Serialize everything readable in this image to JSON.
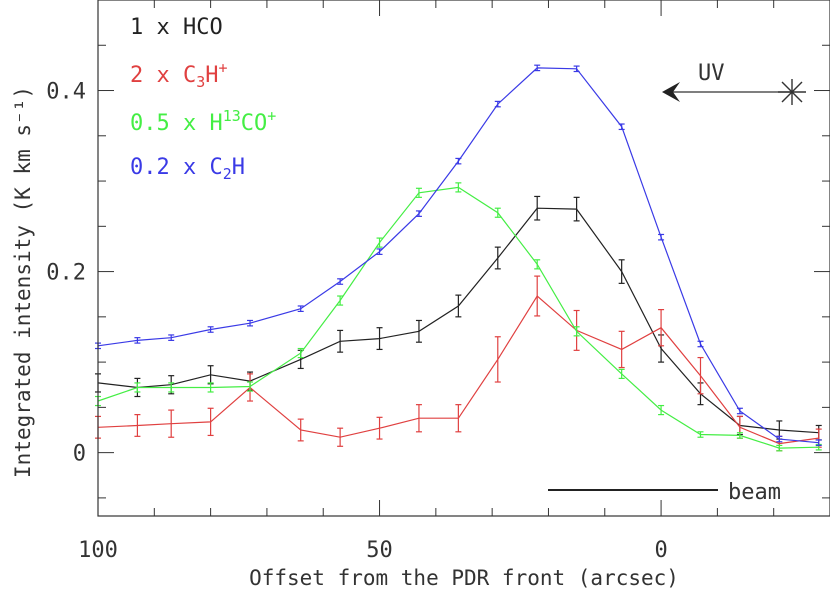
{
  "chart_data": {
    "type": "line",
    "title": "",
    "xlabel": "Offset from the PDR front (arcsec)",
    "ylabel": "Integrated intensity (K km s⁻¹)",
    "xlim": [
      100,
      -30
    ],
    "ylim": [
      -0.07,
      0.5
    ],
    "x_ticks": [
      100,
      50,
      0
    ],
    "y_ticks": [
      0,
      0.2,
      0.4
    ],
    "grid": false,
    "legend_position": "top-left",
    "series": [
      {
        "name": "1 x HCO",
        "label_parts": [
          {
            "t": "1 x HCO"
          }
        ],
        "color": "#222222",
        "x": [
          100,
          93,
          87,
          80,
          73,
          64,
          57,
          50,
          43,
          36,
          29,
          22,
          15,
          7,
          0,
          -7,
          -14,
          -21,
          -28
        ],
        "y": [
          0.077,
          0.072,
          0.075,
          0.086,
          0.079,
          0.103,
          0.123,
          0.126,
          0.134,
          0.162,
          0.215,
          0.27,
          0.269,
          0.2,
          0.115,
          0.065,
          0.03,
          0.025,
          0.022
        ],
        "err": [
          0.01,
          0.01,
          0.01,
          0.01,
          0.01,
          0.01,
          0.012,
          0.012,
          0.012,
          0.012,
          0.012,
          0.013,
          0.013,
          0.013,
          0.015,
          0.012,
          0.01,
          0.01,
          0.008
        ]
      },
      {
        "name": "2 x C3H+",
        "label_parts": [
          {
            "t": "2 x C"
          },
          {
            "t": "3",
            "sub": true
          },
          {
            "t": "H"
          },
          {
            "t": "+",
            "sup": true
          }
        ],
        "color": "#e04040",
        "x": [
          100,
          93,
          87,
          80,
          73,
          64,
          57,
          50,
          43,
          36,
          29,
          22,
          15,
          7,
          0,
          -7,
          -14,
          -21,
          -28
        ],
        "y": [
          0.028,
          0.03,
          0.032,
          0.034,
          0.072,
          0.025,
          0.017,
          0.027,
          0.038,
          0.038,
          0.103,
          0.173,
          0.135,
          0.114,
          0.138,
          0.085,
          0.028,
          0.01,
          0.016
        ],
        "err": [
          0.012,
          0.012,
          0.015,
          0.015,
          0.015,
          0.012,
          0.01,
          0.012,
          0.015,
          0.015,
          0.025,
          0.022,
          0.022,
          0.02,
          0.02,
          0.02,
          0.012,
          0.008,
          0.01
        ]
      },
      {
        "name": "0.5 x H13CO+",
        "label_parts": [
          {
            "t": "0.5 x H"
          },
          {
            "t": "13",
            "sup": true
          },
          {
            "t": "CO"
          },
          {
            "t": "+",
            "sup": true
          }
        ],
        "color": "#44ee44",
        "x": [
          100,
          93,
          87,
          80,
          73,
          64,
          57,
          50,
          43,
          36,
          29,
          22,
          15,
          7,
          0,
          -7,
          -14,
          -21,
          -28
        ],
        "y": [
          0.057,
          0.072,
          0.072,
          0.072,
          0.073,
          0.11,
          0.168,
          0.232,
          0.287,
          0.293,
          0.265,
          0.208,
          0.134,
          0.087,
          0.047,
          0.02,
          0.019,
          0.005,
          0.006
        ],
        "err": [
          0.005,
          0.005,
          0.005,
          0.005,
          0.005,
          0.005,
          0.005,
          0.005,
          0.005,
          0.005,
          0.005,
          0.005,
          0.005,
          0.005,
          0.005,
          0.003,
          0.003,
          0.003,
          0.003
        ]
      },
      {
        "name": "0.2 x C2H",
        "label_parts": [
          {
            "t": "0.2 x C"
          },
          {
            "t": "2",
            "sub": true
          },
          {
            "t": "H"
          }
        ],
        "color": "#3a3ae6",
        "x": [
          100,
          93,
          87,
          80,
          73,
          64,
          57,
          50,
          43,
          36,
          29,
          22,
          15,
          7,
          0,
          -7,
          -14,
          -21,
          -28
        ],
        "y": [
          0.118,
          0.124,
          0.127,
          0.136,
          0.143,
          0.159,
          0.189,
          0.222,
          0.264,
          0.322,
          0.385,
          0.425,
          0.424,
          0.36,
          0.238,
          0.12,
          0.046,
          0.015,
          0.011
        ],
        "err": [
          0.003,
          0.003,
          0.003,
          0.003,
          0.003,
          0.003,
          0.003,
          0.003,
          0.003,
          0.003,
          0.003,
          0.003,
          0.003,
          0.003,
          0.003,
          0.003,
          0.003,
          0.003,
          0.003
        ]
      }
    ],
    "annotations": {
      "uv_label": "UV",
      "beam_label": "beam"
    }
  }
}
